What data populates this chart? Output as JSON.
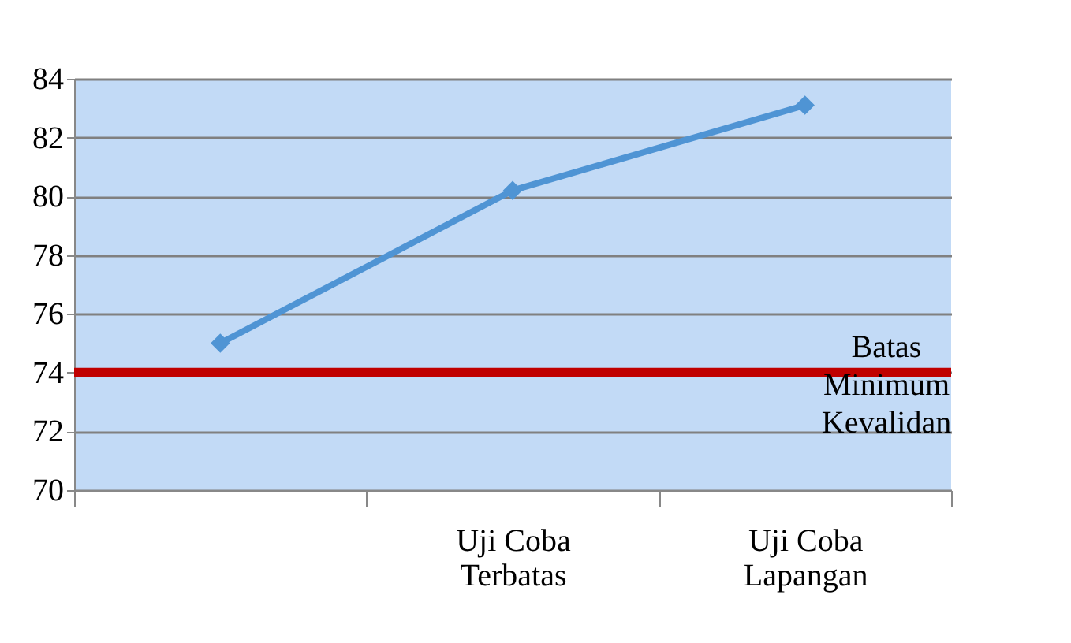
{
  "chart_data": {
    "type": "line",
    "categories": [
      null,
      "Uji Coba Terbatas",
      "Uji Coba Lapangan"
    ],
    "series": [
      {
        "color": "#4f94d4",
        "values": [
          75.0,
          80.2,
          83.1
        ]
      }
    ],
    "ylim": [
      70,
      84
    ],
    "yticks": [
      70,
      72,
      74,
      76,
      78,
      80,
      82,
      84
    ],
    "ref_lines": [
      {
        "axis": "y",
        "value": 74,
        "label": "Batas Minimum Kevalidan",
        "color": "#c00000"
      }
    ],
    "grid": "y",
    "marker": "diamond"
  }
}
